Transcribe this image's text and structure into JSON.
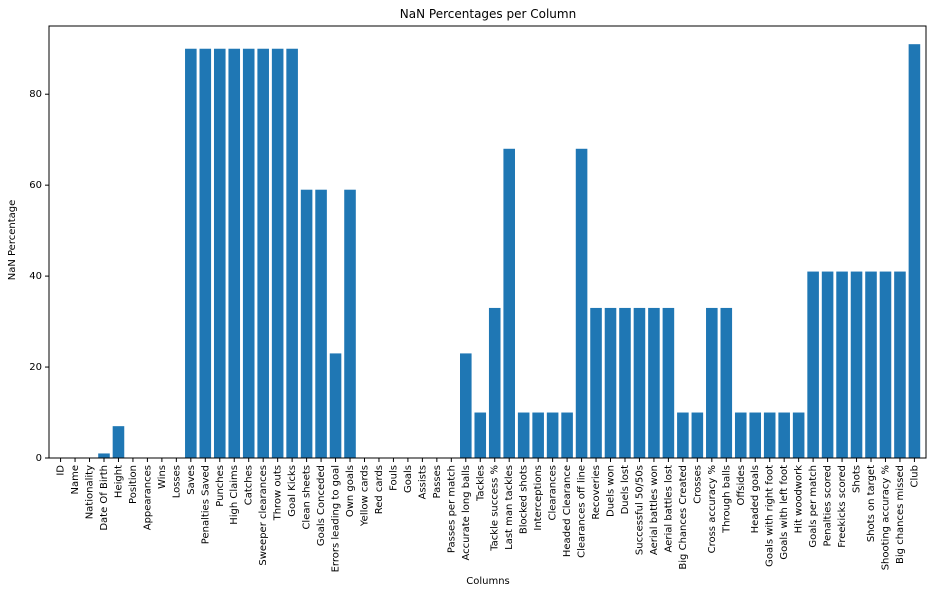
{
  "chart_data": {
    "type": "bar",
    "title": "NaN Percentages per Column",
    "xlabel": "Columns",
    "ylabel": "NaN Percentage",
    "ylim": [
      0,
      95
    ],
    "yticks": [
      0,
      20,
      40,
      60,
      80
    ],
    "grid": false,
    "bar_color": "#1f77b4",
    "categories": [
      "ID",
      "Name",
      "Nationality",
      "Date Of Birth",
      "Height",
      "Position",
      "Appearances",
      "Wins",
      "Losses",
      "Saves",
      "Penalties Saved",
      "Punches",
      "High Claims",
      "Catches",
      "Sweeper clearances",
      "Throw outs",
      "Goal Kicks",
      "Clean sheets",
      "Goals Conceded",
      "Errors leading to goal",
      "Own goals",
      "Yellow cards",
      "Red cards",
      "Fouls",
      "Goals",
      "Assists",
      "Passes",
      "Passes per match",
      "Accurate long balls",
      "Tackles",
      "Tackle success %",
      "Last man tackles",
      "Blocked shots",
      "Interceptions",
      "Clearances",
      "Headed Clearance",
      "Clearances off line",
      "Recoveries",
      "Duels won",
      "Duels lost",
      "Successful 50/50s",
      "Aerial battles won",
      "Aerial battles lost",
      "Big Chances Created",
      "Crosses",
      "Cross accuracy %",
      "Through balls",
      "Offsides",
      "Headed goals",
      "Goals with right foot",
      "Goals with left foot",
      "Hit woodwork",
      "Goals per match",
      "Penalties scored",
      "Freekicks scored",
      "Shots",
      "Shots on target",
      "Shooting accuracy %",
      "Big chances missed",
      "Club"
    ],
    "values": [
      0,
      0,
      0,
      1,
      7,
      0,
      0,
      0,
      0,
      90,
      90,
      90,
      90,
      90,
      90,
      90,
      90,
      59,
      59,
      23,
      59,
      0,
      0,
      0,
      0,
      0,
      0,
      0,
      23,
      10,
      33,
      68,
      10,
      10,
      10,
      10,
      68,
      33,
      33,
      33,
      33,
      33,
      33,
      10,
      10,
      33,
      33,
      10,
      10,
      10,
      10,
      10,
      41,
      41,
      41,
      41,
      41,
      41,
      41,
      91
    ]
  }
}
